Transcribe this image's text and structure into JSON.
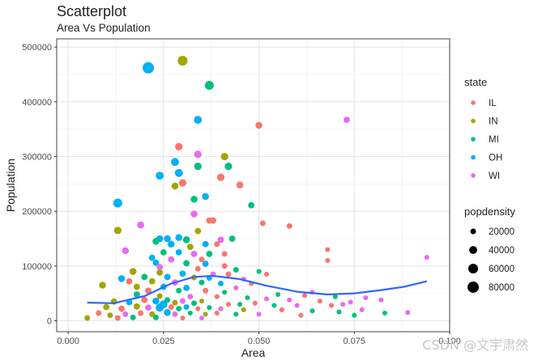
{
  "title": "Scatterplot",
  "subtitle": "Area Vs Population",
  "watermark": "CSDN @文宇肃然",
  "chart_data": {
    "type": "scatter",
    "xlabel": "Area",
    "ylabel": "Population",
    "xlim": [
      -0.003,
      0.1
    ],
    "ylim": [
      -20000,
      515000
    ],
    "xticks": [
      0,
      0.025,
      0.05,
      0.075,
      0.1
    ],
    "xtick_labels": [
      "0.000",
      "0.025",
      "0.050",
      "0.075",
      "0.100"
    ],
    "yticks": [
      0,
      100000,
      200000,
      300000,
      400000,
      500000
    ],
    "ytick_labels": [
      "0",
      "100000",
      "200000",
      "300000",
      "400000",
      "500000"
    ],
    "grid": true,
    "color_legend": {
      "title": "state",
      "position": "right",
      "entries": [
        {
          "label": "IL",
          "color": "#F8766D"
        },
        {
          "label": "IN",
          "color": "#A3A500"
        },
        {
          "label": "MI",
          "color": "#00BF7D"
        },
        {
          "label": "OH",
          "color": "#00B0F6"
        },
        {
          "label": "WI",
          "color": "#E76BF3"
        }
      ]
    },
    "size_legend": {
      "title": "popdensity",
      "position": "right",
      "entries": [
        {
          "label": "20000",
          "value": 20000
        },
        {
          "label": "40000",
          "value": 40000
        },
        {
          "label": "60000",
          "value": 60000
        },
        {
          "label": "80000",
          "value": 80000
        }
      ]
    },
    "smooth_line": {
      "color": "#3366FF",
      "x": [
        0.005,
        0.012,
        0.02,
        0.027,
        0.033,
        0.038,
        0.045,
        0.052,
        0.06,
        0.068,
        0.075,
        0.082,
        0.088,
        0.094
      ],
      "y": [
        33000,
        32000,
        45000,
        68000,
        80000,
        82000,
        76000,
        64000,
        53000,
        48000,
        50000,
        56000,
        62000,
        72000
      ]
    },
    "points": [
      {
        "x": 0.021,
        "y": 462000,
        "state": "OH",
        "popdensity": 80000
      },
      {
        "x": 0.03,
        "y": 475000,
        "state": "IN",
        "popdensity": 60000
      },
      {
        "x": 0.037,
        "y": 430000,
        "state": "MI",
        "popdensity": 50000
      },
      {
        "x": 0.034,
        "y": 367000,
        "state": "OH",
        "popdensity": 40000
      },
      {
        "x": 0.05,
        "y": 357000,
        "state": "IL",
        "popdensity": 30000
      },
      {
        "x": 0.073,
        "y": 367000,
        "state": "WI",
        "popdensity": 25000
      },
      {
        "x": 0.029,
        "y": 318000,
        "state": "IL",
        "popdensity": 35000
      },
      {
        "x": 0.034,
        "y": 304000,
        "state": "WI",
        "popdensity": 35000
      },
      {
        "x": 0.041,
        "y": 300000,
        "state": "IN",
        "popdensity": 35000
      },
      {
        "x": 0.028,
        "y": 290000,
        "state": "OH",
        "popdensity": 40000
      },
      {
        "x": 0.034,
        "y": 282000,
        "state": "MI",
        "popdensity": 35000
      },
      {
        "x": 0.042,
        "y": 282000,
        "state": "MI",
        "popdensity": 35000
      },
      {
        "x": 0.029,
        "y": 270000,
        "state": "OH",
        "popdensity": 40000
      },
      {
        "x": 0.024,
        "y": 265000,
        "state": "OH",
        "popdensity": 40000
      },
      {
        "x": 0.04,
        "y": 262000,
        "state": "IL",
        "popdensity": 35000
      },
      {
        "x": 0.03,
        "y": 252000,
        "state": "IL",
        "popdensity": 35000
      },
      {
        "x": 0.028,
        "y": 246000,
        "state": "IN",
        "popdensity": 30000
      },
      {
        "x": 0.045,
        "y": 248000,
        "state": "IL",
        "popdensity": 30000
      },
      {
        "x": 0.033,
        "y": 222000,
        "state": "MI",
        "popdensity": 30000
      },
      {
        "x": 0.036,
        "y": 227000,
        "state": "OH",
        "popdensity": 30000
      },
      {
        "x": 0.013,
        "y": 215000,
        "state": "OH",
        "popdensity": 50000
      },
      {
        "x": 0.048,
        "y": 211000,
        "state": "MI",
        "popdensity": 25000
      },
      {
        "x": 0.033,
        "y": 195000,
        "state": "WI",
        "popdensity": 30000
      },
      {
        "x": 0.037,
        "y": 183000,
        "state": "IL",
        "popdensity": 25000
      },
      {
        "x": 0.038,
        "y": 183000,
        "state": "IL",
        "popdensity": 25000
      },
      {
        "x": 0.051,
        "y": 178000,
        "state": "IL",
        "popdensity": 20000
      },
      {
        "x": 0.058,
        "y": 173000,
        "state": "IL",
        "popdensity": 20000
      },
      {
        "x": 0.019,
        "y": 175000,
        "state": "WI",
        "popdensity": 30000
      },
      {
        "x": 0.013,
        "y": 165000,
        "state": "IN",
        "popdensity": 35000
      },
      {
        "x": 0.034,
        "y": 164000,
        "state": "IN",
        "popdensity": 25000
      },
      {
        "x": 0.024,
        "y": 150000,
        "state": "OH",
        "popdensity": 30000
      },
      {
        "x": 0.026,
        "y": 150000,
        "state": "OH",
        "popdensity": 30000
      },
      {
        "x": 0.029,
        "y": 152000,
        "state": "OH",
        "popdensity": 30000
      },
      {
        "x": 0.031,
        "y": 148000,
        "state": "MI",
        "popdensity": 30000
      },
      {
        "x": 0.04,
        "y": 148000,
        "state": "WI",
        "popdensity": 25000
      },
      {
        "x": 0.043,
        "y": 150000,
        "state": "MI",
        "popdensity": 25000
      },
      {
        "x": 0.023,
        "y": 145000,
        "state": "MI",
        "popdensity": 30000
      },
      {
        "x": 0.027,
        "y": 140000,
        "state": "OH",
        "popdensity": 30000
      },
      {
        "x": 0.032,
        "y": 135000,
        "state": "IN",
        "popdensity": 25000
      },
      {
        "x": 0.036,
        "y": 140000,
        "state": "OH",
        "popdensity": 25000
      },
      {
        "x": 0.039,
        "y": 140000,
        "state": "IL",
        "popdensity": 20000
      },
      {
        "x": 0.068,
        "y": 130000,
        "state": "IL",
        "popdensity": 15000
      },
      {
        "x": 0.015,
        "y": 128000,
        "state": "WI",
        "popdensity": 30000
      },
      {
        "x": 0.025,
        "y": 125000,
        "state": "MI",
        "popdensity": 25000
      },
      {
        "x": 0.029,
        "y": 125000,
        "state": "OH",
        "popdensity": 25000
      },
      {
        "x": 0.033,
        "y": 122000,
        "state": "WI",
        "popdensity": 25000
      },
      {
        "x": 0.037,
        "y": 122000,
        "state": "MI",
        "popdensity": 25000
      },
      {
        "x": 0.041,
        "y": 122000,
        "state": "IL",
        "popdensity": 20000
      },
      {
        "x": 0.022,
        "y": 115000,
        "state": "OH",
        "popdensity": 25000
      },
      {
        "x": 0.027,
        "y": 112000,
        "state": "WI",
        "popdensity": 25000
      },
      {
        "x": 0.035,
        "y": 112000,
        "state": "IL",
        "popdensity": 20000
      },
      {
        "x": 0.068,
        "y": 110000,
        "state": "IL",
        "popdensity": 15000
      },
      {
        "x": 0.094,
        "y": 116000,
        "state": "WI",
        "popdensity": 15000
      },
      {
        "x": 0.023,
        "y": 106000,
        "state": "OH",
        "popdensity": 25000
      },
      {
        "x": 0.031,
        "y": 105000,
        "state": "MI",
        "popdensity": 25000
      },
      {
        "x": 0.036,
        "y": 104000,
        "state": "OH",
        "popdensity": 25000
      },
      {
        "x": 0.041,
        "y": 100000,
        "state": "IL",
        "popdensity": 20000
      },
      {
        "x": 0.024,
        "y": 98000,
        "state": "WI",
        "popdensity": 25000
      },
      {
        "x": 0.034,
        "y": 95000,
        "state": "IL",
        "popdensity": 20000
      },
      {
        "x": 0.044,
        "y": 93000,
        "state": "MI",
        "popdensity": 20000
      },
      {
        "x": 0.05,
        "y": 90000,
        "state": "MI",
        "popdensity": 15000
      },
      {
        "x": 0.017,
        "y": 90000,
        "state": "IN",
        "popdensity": 30000
      },
      {
        "x": 0.024,
        "y": 88000,
        "state": "IN",
        "popdensity": 25000
      },
      {
        "x": 0.03,
        "y": 86000,
        "state": "OH",
        "popdensity": 25000
      },
      {
        "x": 0.038,
        "y": 85000,
        "state": "WI",
        "popdensity": 20000
      },
      {
        "x": 0.042,
        "y": 85000,
        "state": "IL",
        "popdensity": 20000
      },
      {
        "x": 0.052,
        "y": 85000,
        "state": "IL",
        "popdensity": 15000
      },
      {
        "x": 0.014,
        "y": 77000,
        "state": "OH",
        "popdensity": 30000
      },
      {
        "x": 0.02,
        "y": 80000,
        "state": "MI",
        "popdensity": 25000
      },
      {
        "x": 0.026,
        "y": 80000,
        "state": "OH",
        "popdensity": 25000
      },
      {
        "x": 0.033,
        "y": 79000,
        "state": "IN",
        "popdensity": 20000
      },
      {
        "x": 0.037,
        "y": 78000,
        "state": "OH",
        "popdensity": 20000
      },
      {
        "x": 0.046,
        "y": 76000,
        "state": "WI",
        "popdensity": 15000
      },
      {
        "x": 0.016,
        "y": 72000,
        "state": "IL",
        "popdensity": 25000
      },
      {
        "x": 0.022,
        "y": 72000,
        "state": "IN",
        "popdensity": 25000
      },
      {
        "x": 0.028,
        "y": 70000,
        "state": "WI",
        "popdensity": 25000
      },
      {
        "x": 0.035,
        "y": 70000,
        "state": "MI",
        "popdensity": 20000
      },
      {
        "x": 0.04,
        "y": 68000,
        "state": "OH",
        "popdensity": 20000
      },
      {
        "x": 0.048,
        "y": 68000,
        "state": "IL",
        "popdensity": 15000
      },
      {
        "x": 0.009,
        "y": 65000,
        "state": "IN",
        "popdensity": 30000
      },
      {
        "x": 0.018,
        "y": 62000,
        "state": "IN",
        "popdensity": 25000
      },
      {
        "x": 0.025,
        "y": 62000,
        "state": "OH",
        "popdensity": 25000
      },
      {
        "x": 0.031,
        "y": 60000,
        "state": "OH",
        "popdensity": 25000
      },
      {
        "x": 0.044,
        "y": 60000,
        "state": "WI",
        "popdensity": 15000
      },
      {
        "x": 0.064,
        "y": 52000,
        "state": "WI",
        "popdensity": 15000
      },
      {
        "x": 0.021,
        "y": 55000,
        "state": "IL",
        "popdensity": 25000
      },
      {
        "x": 0.029,
        "y": 55000,
        "state": "MI",
        "popdensity": 20000
      },
      {
        "x": 0.036,
        "y": 55000,
        "state": "IL",
        "popdensity": 20000
      },
      {
        "x": 0.041,
        "y": 52000,
        "state": "MI",
        "popdensity": 15000
      },
      {
        "x": 0.055,
        "y": 48000,
        "state": "MI",
        "popdensity": 15000
      },
      {
        "x": 0.062,
        "y": 46000,
        "state": "IL",
        "popdensity": 15000
      },
      {
        "x": 0.07,
        "y": 44000,
        "state": "MI",
        "popdensity": 15000
      },
      {
        "x": 0.078,
        "y": 42000,
        "state": "WI",
        "popdensity": 15000
      },
      {
        "x": 0.018,
        "y": 48000,
        "state": "MI",
        "popdensity": 25000
      },
      {
        "x": 0.024,
        "y": 45000,
        "state": "IN",
        "popdensity": 20000
      },
      {
        "x": 0.032,
        "y": 44000,
        "state": "WI",
        "popdensity": 20000
      },
      {
        "x": 0.039,
        "y": 44000,
        "state": "IL",
        "popdensity": 15000
      },
      {
        "x": 0.047,
        "y": 42000,
        "state": "MI",
        "popdensity": 15000
      },
      {
        "x": 0.052,
        "y": 40000,
        "state": "WI",
        "popdensity": 15000
      },
      {
        "x": 0.058,
        "y": 38000,
        "state": "WI",
        "popdensity": 15000
      },
      {
        "x": 0.066,
        "y": 36000,
        "state": "IL",
        "popdensity": 15000
      },
      {
        "x": 0.074,
        "y": 34000,
        "state": "WI",
        "popdensity": 15000
      },
      {
        "x": 0.082,
        "y": 38000,
        "state": "WI",
        "popdensity": 15000
      },
      {
        "x": 0.012,
        "y": 35000,
        "state": "IN",
        "popdensity": 25000
      },
      {
        "x": 0.016,
        "y": 34000,
        "state": "OH",
        "popdensity": 25000
      },
      {
        "x": 0.02,
        "y": 38000,
        "state": "IL",
        "popdensity": 25000
      },
      {
        "x": 0.023,
        "y": 36000,
        "state": "OH",
        "popdensity": 30000
      },
      {
        "x": 0.025,
        "y": 30000,
        "state": "OH",
        "popdensity": 40000
      },
      {
        "x": 0.026,
        "y": 38000,
        "state": "MI",
        "popdensity": 20000
      },
      {
        "x": 0.028,
        "y": 33000,
        "state": "IN",
        "popdensity": 20000
      },
      {
        "x": 0.03,
        "y": 36000,
        "state": "WI",
        "popdensity": 20000
      },
      {
        "x": 0.033,
        "y": 32000,
        "state": "MI",
        "popdensity": 20000
      },
      {
        "x": 0.035,
        "y": 36000,
        "state": "IN",
        "popdensity": 15000
      },
      {
        "x": 0.042,
        "y": 30000,
        "state": "IL",
        "popdensity": 15000
      },
      {
        "x": 0.045,
        "y": 30000,
        "state": "MI",
        "popdensity": 15000
      },
      {
        "x": 0.049,
        "y": 32000,
        "state": "IL",
        "popdensity": 15000
      },
      {
        "x": 0.054,
        "y": 28000,
        "state": "MI",
        "popdensity": 15000
      },
      {
        "x": 0.06,
        "y": 28000,
        "state": "WI",
        "popdensity": 15000
      },
      {
        "x": 0.069,
        "y": 28000,
        "state": "IL",
        "popdensity": 15000
      },
      {
        "x": 0.072,
        "y": 30000,
        "state": "WI",
        "popdensity": 15000
      },
      {
        "x": 0.01,
        "y": 25000,
        "state": "IN",
        "popdensity": 25000
      },
      {
        "x": 0.014,
        "y": 22000,
        "state": "IL",
        "popdensity": 25000
      },
      {
        "x": 0.018,
        "y": 26000,
        "state": "IN",
        "popdensity": 25000
      },
      {
        "x": 0.021,
        "y": 24000,
        "state": "WI",
        "popdensity": 25000
      },
      {
        "x": 0.024,
        "y": 24000,
        "state": "OH",
        "popdensity": 40000
      },
      {
        "x": 0.027,
        "y": 25000,
        "state": "IL",
        "popdensity": 20000
      },
      {
        "x": 0.029,
        "y": 22000,
        "state": "MI",
        "popdensity": 20000
      },
      {
        "x": 0.031,
        "y": 25000,
        "state": "OH",
        "popdensity": 20000
      },
      {
        "x": 0.034,
        "y": 22000,
        "state": "IL",
        "popdensity": 15000
      },
      {
        "x": 0.037,
        "y": 24000,
        "state": "MI",
        "popdensity": 15000
      },
      {
        "x": 0.04,
        "y": 22000,
        "state": "WI",
        "popdensity": 15000
      },
      {
        "x": 0.046,
        "y": 20000,
        "state": "IN",
        "popdensity": 15000
      },
      {
        "x": 0.056,
        "y": 20000,
        "state": "IL",
        "popdensity": 15000
      },
      {
        "x": 0.064,
        "y": 18000,
        "state": "MI",
        "popdensity": 15000
      },
      {
        "x": 0.071,
        "y": 16000,
        "state": "MI",
        "popdensity": 15000
      },
      {
        "x": 0.077,
        "y": 20000,
        "state": "WI",
        "popdensity": 15000
      },
      {
        "x": 0.083,
        "y": 14000,
        "state": "MI",
        "popdensity": 15000
      },
      {
        "x": 0.089,
        "y": 15000,
        "state": "WI",
        "popdensity": 15000
      },
      {
        "x": 0.008,
        "y": 14000,
        "state": "IL",
        "popdensity": 20000
      },
      {
        "x": 0.011,
        "y": 10000,
        "state": "IN",
        "popdensity": 20000
      },
      {
        "x": 0.015,
        "y": 12000,
        "state": "WI",
        "popdensity": 20000
      },
      {
        "x": 0.019,
        "y": 14000,
        "state": "IL",
        "popdensity": 20000
      },
      {
        "x": 0.022,
        "y": 12000,
        "state": "IN",
        "popdensity": 20000
      },
      {
        "x": 0.026,
        "y": 15000,
        "state": "OH",
        "popdensity": 30000
      },
      {
        "x": 0.028,
        "y": 12000,
        "state": "WI",
        "popdensity": 20000
      },
      {
        "x": 0.032,
        "y": 14000,
        "state": "MI",
        "popdensity": 15000
      },
      {
        "x": 0.036,
        "y": 12000,
        "state": "IN",
        "popdensity": 15000
      },
      {
        "x": 0.039,
        "y": 14000,
        "state": "IL",
        "popdensity": 15000
      },
      {
        "x": 0.044,
        "y": 12000,
        "state": "MI",
        "popdensity": 15000
      },
      {
        "x": 0.05,
        "y": 12000,
        "state": "WI",
        "popdensity": 15000
      },
      {
        "x": 0.061,
        "y": 10000,
        "state": "IL",
        "popdensity": 15000
      },
      {
        "x": 0.075,
        "y": 10000,
        "state": "MI",
        "popdensity": 15000
      },
      {
        "x": 0.005,
        "y": 5000,
        "state": "IN",
        "popdensity": 20000
      },
      {
        "x": 0.013,
        "y": 5000,
        "state": "IL",
        "popdensity": 20000
      },
      {
        "x": 0.017,
        "y": 6000,
        "state": "MI",
        "popdensity": 20000
      },
      {
        "x": 0.023,
        "y": 6000,
        "state": "MI",
        "popdensity": 20000
      },
      {
        "x": 0.03,
        "y": 5000,
        "state": "IL",
        "popdensity": 15000
      },
      {
        "x": 0.035,
        "y": 5000,
        "state": "WI",
        "popdensity": 15000
      }
    ]
  }
}
